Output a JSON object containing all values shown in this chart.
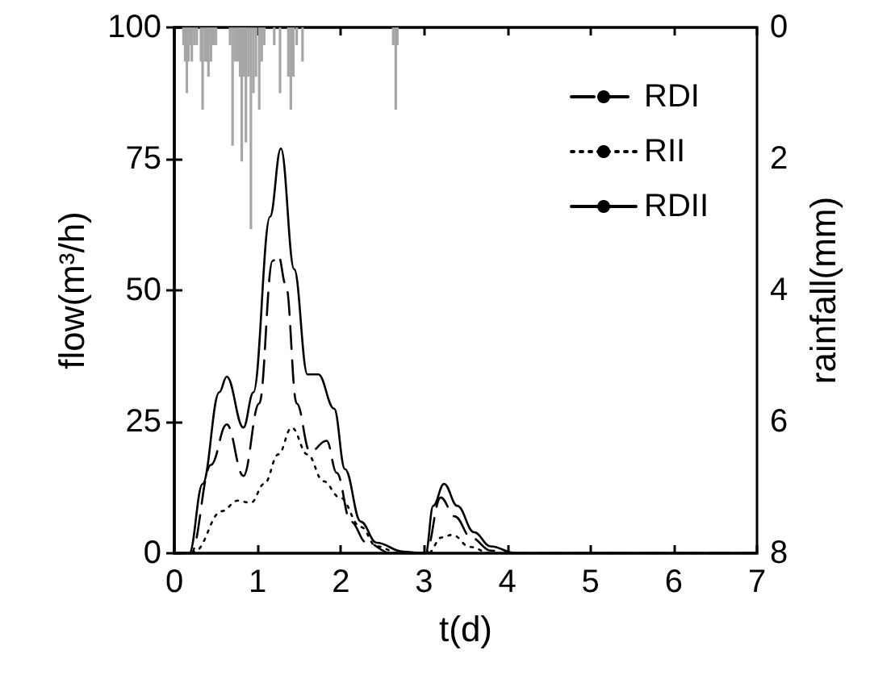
{
  "chart_data": {
    "type": "line",
    "xlabel": "t(d)",
    "ylabel": "flow(m³/h)",
    "y2label": "rainfall(mm)",
    "xlim": [
      0,
      7
    ],
    "xticks": [
      0,
      1,
      2,
      3,
      4,
      5,
      6,
      7
    ],
    "ylim": [
      0,
      100
    ],
    "yticks": [
      0,
      25,
      50,
      75,
      100
    ],
    "y2lim": [
      8,
      0
    ],
    "y2ticks": [
      0,
      2,
      4,
      6,
      8
    ],
    "legend": "top right",
    "grid": false,
    "marker": "none",
    "series": [
      {
        "name": "RDI",
        "color": "#000000",
        "line_style": "dashed",
        "x": [
          0,
          0.2,
          0.44,
          0.63,
          0.83,
          1.02,
          1.18,
          1.25,
          1.34,
          1.47,
          1.63,
          1.83,
          1.95,
          2.12,
          2.31,
          2.6,
          3.02,
          3.2,
          3.37,
          3.57,
          3.8,
          4.0,
          7
        ],
        "values": [
          0,
          0,
          16.8,
          24.5,
          14.7,
          28.5,
          55.6,
          56.6,
          51,
          28.5,
          19.3,
          21.4,
          15.3,
          6,
          2,
          0,
          0,
          10.6,
          7,
          2.9,
          0.5,
          0,
          0
        ]
      },
      {
        "name": "RII",
        "color": "#000000",
        "line_style": "dotted",
        "x": [
          0,
          0.2,
          0.24,
          0.57,
          0.76,
          0.92,
          1.08,
          1.25,
          1.41,
          1.6,
          1.79,
          1.99,
          2.24,
          2.43,
          2.7,
          3.05,
          3.21,
          3.34,
          3.55,
          3.8,
          7
        ],
        "values": [
          0,
          0,
          0.3,
          8,
          10,
          9.6,
          13.2,
          18.8,
          23.9,
          18.8,
          13.7,
          10.6,
          5,
          1.3,
          0,
          0,
          3,
          3.5,
          1.2,
          0,
          0
        ]
      },
      {
        "name": "RDII",
        "color": "#000000",
        "line_style": "solid",
        "x": [
          0,
          0.18,
          0.34,
          0.54,
          0.63,
          0.83,
          0.95,
          1.15,
          1.28,
          1.44,
          1.6,
          1.73,
          1.92,
          2.05,
          2.24,
          2.43,
          2.75,
          3.0,
          3.02,
          3.11,
          3.24,
          3.4,
          3.6,
          3.8,
          4.1,
          7
        ],
        "values": [
          0,
          0,
          13.2,
          30.6,
          33.6,
          23.9,
          30.6,
          64,
          77,
          54,
          34,
          34,
          27.5,
          16,
          6,
          2,
          0.3,
          0,
          0,
          9,
          13.2,
          9,
          4,
          1.3,
          0,
          0
        ]
      },
      {
        "type": "bar",
        "axis": "y2",
        "color": "#a6a6a6",
        "x": [
          0.11,
          0.13,
          0.15,
          0.17,
          0.19,
          0.21,
          0.24,
          0.27,
          0.32,
          0.34,
          0.37,
          0.39,
          0.41,
          0.44,
          0.47,
          0.5,
          0.67,
          0.7,
          0.73,
          0.76,
          0.79,
          0.81,
          0.84,
          0.86,
          0.89,
          0.92,
          0.95,
          0.98,
          1.02,
          1.05,
          1.08,
          1.2,
          1.27,
          1.37,
          1.4,
          1.43,
          1.47,
          1.54,
          2.63,
          2.66,
          2.68
        ],
        "values": [
          0.27,
          0.52,
          1.0,
          0.52,
          0.27,
          0.52,
          0.27,
          0.27,
          0.52,
          1.25,
          0.52,
          0.52,
          0.75,
          0.52,
          0.27,
          0.27,
          0.27,
          1.8,
          0.52,
          0.52,
          0.75,
          2.04,
          0.75,
          1.75,
          0.75,
          3.07,
          1.0,
          0.75,
          1.25,
          0.52,
          0.27,
          0.27,
          1.0,
          0.75,
          1.25,
          0.75,
          0.27,
          0.52,
          0.27,
          1.25,
          0.27
        ]
      }
    ]
  }
}
